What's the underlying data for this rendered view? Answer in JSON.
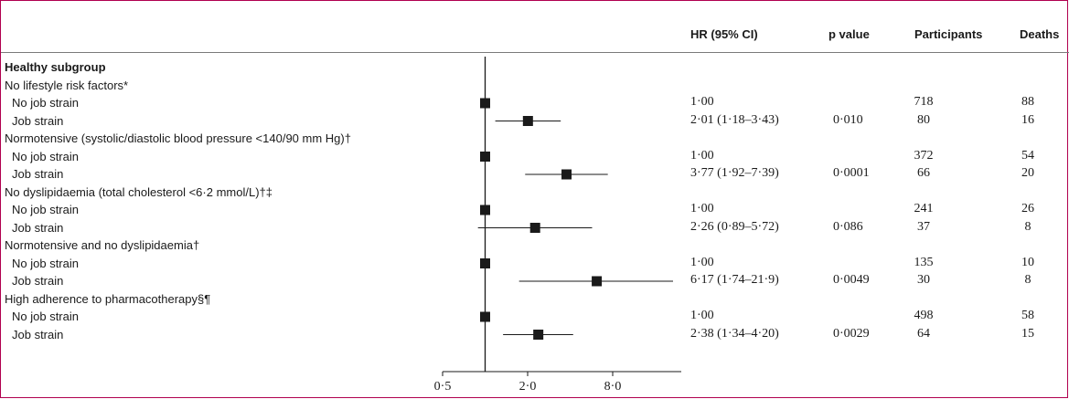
{
  "columns": {
    "hr": "HR (95% CI)",
    "p": "p value",
    "participants": "Participants",
    "deaths": "Deaths"
  },
  "rows": [
    {
      "label": "Healthy subgroup",
      "kind": "header"
    },
    {
      "label": "No lifestyle risk factors*",
      "kind": "group"
    },
    {
      "label": "No job strain",
      "kind": "item",
      "hr": "1·00",
      "p": "",
      "participants": "718",
      "deaths": "88"
    },
    {
      "label": "Job strain",
      "kind": "item",
      "hr": "2·01 (1·18–3·43)",
      "p": "0·010",
      "participants": "80",
      "deaths": "16"
    },
    {
      "label": "Normotensive (systolic/diastolic blood pressure <140/90 mm Hg)†",
      "kind": "group"
    },
    {
      "label": "No job strain",
      "kind": "item",
      "hr": "1·00",
      "p": "",
      "participants": "372",
      "deaths": "54"
    },
    {
      "label": "Job strain",
      "kind": "item",
      "hr": "3·77 (1·92–7·39)",
      "p": "0·0001",
      "participants": "66",
      "deaths": "20"
    },
    {
      "label": "No dyslipidaemia (total cholesterol <6·2 mmol/L)†‡",
      "kind": "group"
    },
    {
      "label": "No job strain",
      "kind": "item",
      "hr": "1·00",
      "p": "",
      "participants": "241",
      "deaths": "26"
    },
    {
      "label": "Job strain",
      "kind": "item",
      "hr": "2·26 (0·89–5·72)",
      "p": "0·086",
      "participants": "37",
      "deaths": "8"
    },
    {
      "label": "Normotensive and no dyslipidaemia†",
      "kind": "group"
    },
    {
      "label": "No job strain",
      "kind": "item",
      "hr": "1·00",
      "p": "",
      "participants": "135",
      "deaths": "10"
    },
    {
      "label": "Job strain",
      "kind": "item",
      "hr": "6·17 (1·74–21·9)",
      "p": "0·0049",
      "participants": "30",
      "deaths": "8"
    },
    {
      "label": "High adherence to pharmacotherapy§¶",
      "kind": "group"
    },
    {
      "label": "No job strain",
      "kind": "item",
      "hr": "1·00",
      "p": "",
      "participants": "498",
      "deaths": "58"
    },
    {
      "label": "Job strain",
      "kind": "item",
      "hr": "2·38 (1·34–4·20)",
      "p": "0·0029",
      "participants": "64",
      "deaths": "15"
    }
  ],
  "chart_data": {
    "type": "forest",
    "x_scale": "log2",
    "reference_line": 1,
    "x_ticks": [
      {
        "value": 0.5,
        "label": "0·5"
      },
      {
        "value": 2,
        "label": "2·0"
      },
      {
        "value": 8,
        "label": "8·0"
      }
    ],
    "x_range": [
      0.5,
      20
    ],
    "points": [
      {
        "row": 2,
        "hr": 1.0,
        "lo": null,
        "hi": null
      },
      {
        "row": 3,
        "hr": 2.01,
        "lo": 1.18,
        "hi": 3.43
      },
      {
        "row": 5,
        "hr": 1.0,
        "lo": null,
        "hi": null
      },
      {
        "row": 6,
        "hr": 3.77,
        "lo": 1.92,
        "hi": 7.39
      },
      {
        "row": 8,
        "hr": 1.0,
        "lo": null,
        "hi": null
      },
      {
        "row": 9,
        "hr": 2.26,
        "lo": 0.89,
        "hi": 5.72
      },
      {
        "row": 11,
        "hr": 1.0,
        "lo": null,
        "hi": null
      },
      {
        "row": 12,
        "hr": 6.17,
        "lo": 1.74,
        "hi": 21.9
      },
      {
        "row": 14,
        "hr": 1.0,
        "lo": null,
        "hi": null
      },
      {
        "row": 15,
        "hr": 2.38,
        "lo": 1.34,
        "hi": 4.2
      }
    ],
    "colors": {
      "frame": "#b0004f",
      "marker": "#1a1a1a"
    }
  }
}
